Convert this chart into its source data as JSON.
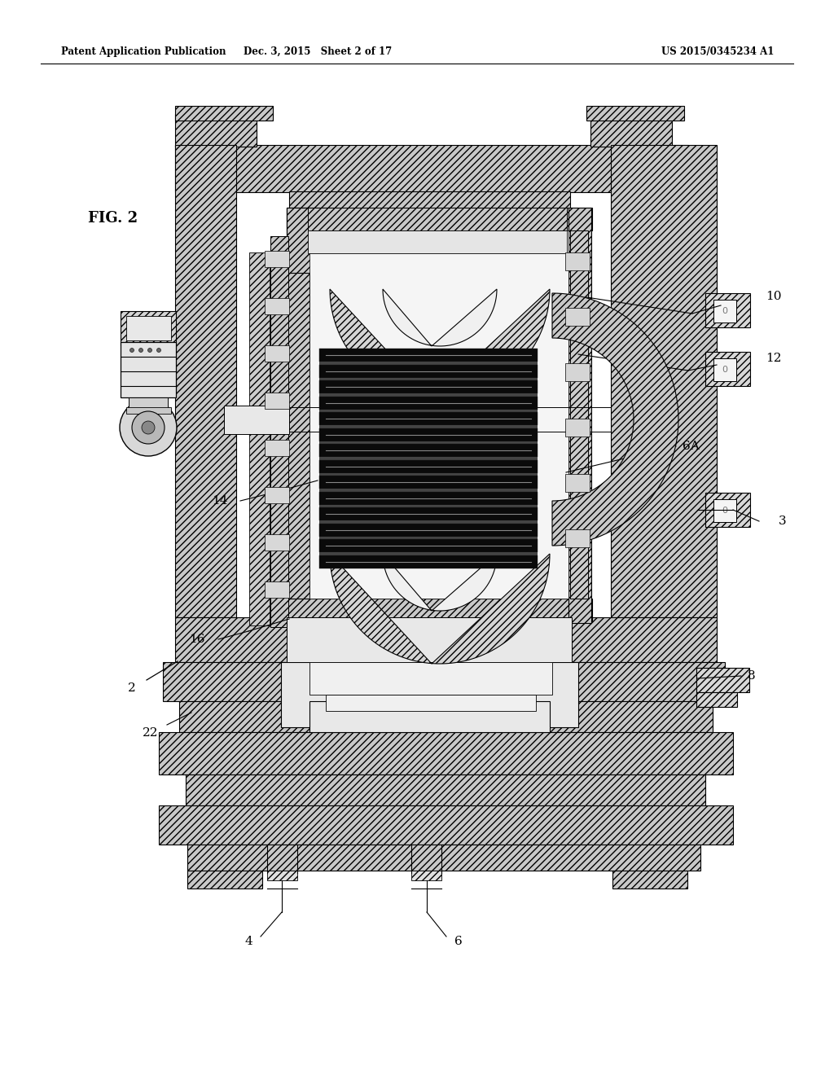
{
  "bg_color": "#ffffff",
  "header_left": "Patent Application Publication",
  "header_mid": "Dec. 3, 2015   Sheet 2 of 17",
  "header_right": "US 2015/0345234 A1",
  "fig_label": "FIG. 2",
  "line_color": "#000000",
  "hatch_fc": "#c8c8c8",
  "dark_plate": "#111111",
  "white": "#ffffff",
  "light_gray": "#e8e8e8",
  "med_gray": "#999999"
}
